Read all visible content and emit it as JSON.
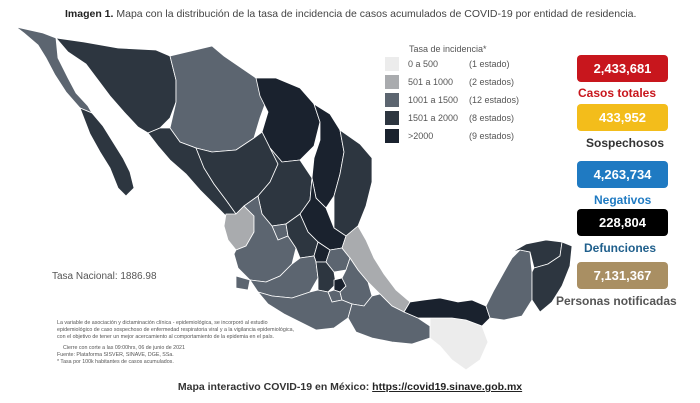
{
  "caption": {
    "prefix": "Imagen 1.",
    "text": "Mapa con la distribución de la tasa de incidencia de casos acumulados de COVID-19 por entidad de residencia."
  },
  "legend": {
    "title": "Tasa de incidencia*",
    "items": [
      {
        "range": "0 a   500",
        "count": "(1 estado)",
        "color": "#ececec"
      },
      {
        "range": "501 a  1000",
        "count": "(2 estados)",
        "color": "#a9abae"
      },
      {
        "range": "1001 a  1500",
        "count": "(12 estados)",
        "color": "#5c6570"
      },
      {
        "range": "1501 a  2000",
        "count": "(8 estados)",
        "color": "#2d3640"
      },
      {
        "range": ">2000",
        "count": "(9 estados)",
        "color": "#1a222e"
      }
    ]
  },
  "tasa_nacional": "Tasa Nacional: 1886.98",
  "stats": [
    {
      "value": "2,433,681",
      "label": "Casos totales",
      "box_color": "#c8161d",
      "label_color": "#c8161d"
    },
    {
      "value": "433,952",
      "label": "Sospechosos",
      "box_color": "#f3bd1b",
      "label_color": "#333333"
    },
    {
      "value": "4,263,734",
      "label": "Negativos",
      "box_color": "#1f7ac2",
      "label_color": "#1f7ac2"
    },
    {
      "value": "228,804",
      "label": "Defunciones",
      "box_color": "#000000",
      "label_color": "#1f5f8c"
    },
    {
      "value": "7,131,367",
      "label": "Personas notificadas",
      "box_color": "#a98f63",
      "label_color": "#555555"
    }
  ],
  "notes": [
    "La variable de asociación y dictaminación clínica - epidemiológica, se incorporó al estudio",
    "epidemiológico de caso sospechoso de enfermedad respiratoria viral y a la vigilancia epidemiológica,",
    "con el objetivo de tener un mejor acercamiento al comportamiento de la epidemia en el país.",
    "Cierre con corte a las 09:00hrs, 06 de junio de 2021",
    "Fuente: Plataforma SISVER, SINAVE, DGE, SSa.",
    "* Tasa por 100k habitantes de casos acumulados."
  ],
  "footer": {
    "text": "Mapa interactivo COVID-19 en México:",
    "link": "https://covid19.sinave.gob.mx"
  }
}
